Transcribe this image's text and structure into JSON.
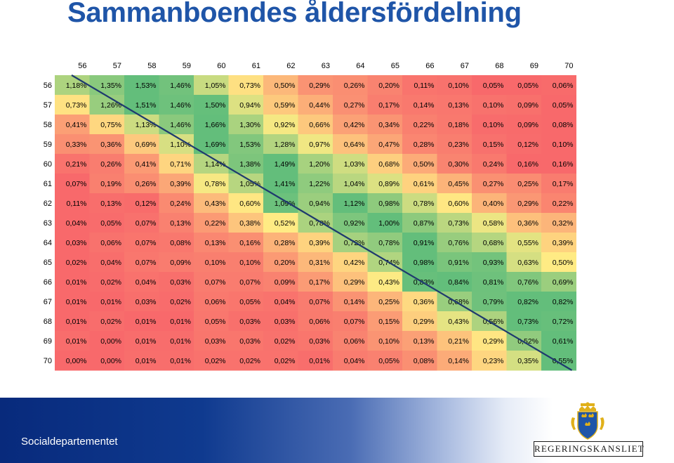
{
  "title": "Sammanboendes åldersfördelning",
  "footer": {
    "department": "Socialdepartementet",
    "logo_text": "REGERINGSKANSLIET"
  },
  "logo": {
    "icon": "three-crowns-crest-icon",
    "colors": {
      "shield": "#1f55a8",
      "crowns": "#e0b01a"
    }
  },
  "colors": {
    "title": "#1f55a8",
    "scale_low": "#f8696b",
    "scale_mid": "#ffeb84",
    "scale_high": "#63be7b",
    "diagonal_line": "#1f3a6e"
  },
  "chart_data": {
    "type": "heatmap",
    "title": "Sammanboendes åldersfördelning",
    "x_labels": [
      "56",
      "57",
      "58",
      "59",
      "60",
      "61",
      "62",
      "63",
      "64",
      "65",
      "66",
      "67",
      "68",
      "69",
      "70"
    ],
    "y_labels": [
      "56",
      "57",
      "58",
      "59",
      "60",
      "61",
      "62",
      "63",
      "64",
      "65",
      "66",
      "67",
      "68",
      "69",
      "70"
    ],
    "values": [
      [
        "1,18%",
        "1,35%",
        "1,53%",
        "1,46%",
        "1,05%",
        "0,73%",
        "0,50%",
        "0,29%",
        "0,26%",
        "0,20%",
        "0,11%",
        "0,10%",
        "0,05%",
        "0,05%",
        "0,06%"
      ],
      [
        "0,73%",
        "1,26%",
        "1,51%",
        "1,46%",
        "1,50%",
        "0,94%",
        "0,59%",
        "0,44%",
        "0,27%",
        "0,17%",
        "0,14%",
        "0,13%",
        "0,10%",
        "0,09%",
        "0,05%"
      ],
      [
        "0,41%",
        "0,75%",
        "1,13%",
        "1,46%",
        "1,66%",
        "1,30%",
        "0,92%",
        "0,66%",
        "0,42%",
        "0,34%",
        "0,22%",
        "0,18%",
        "0,10%",
        "0,09%",
        "0,08%"
      ],
      [
        "0,33%",
        "0,36%",
        "0,69%",
        "1,10%",
        "1,69%",
        "1,53%",
        "1,28%",
        "0,97%",
        "0,64%",
        "0,47%",
        "0,28%",
        "0,23%",
        "0,15%",
        "0,12%",
        "0,10%"
      ],
      [
        "0,21%",
        "0,26%",
        "0,41%",
        "0,71%",
        "1,14%",
        "1,38%",
        "1,49%",
        "1,20%",
        "1,03%",
        "0,68%",
        "0,50%",
        "0,30%",
        "0,24%",
        "0,16%",
        "0,16%"
      ],
      [
        "0,07%",
        "0,19%",
        "0,26%",
        "0,39%",
        "0,78%",
        "1,05%",
        "1,41%",
        "1,22%",
        "1,04%",
        "0,89%",
        "0,61%",
        "0,45%",
        "0,27%",
        "0,25%",
        "0,17%"
      ],
      [
        "0,11%",
        "0,13%",
        "0,12%",
        "0,24%",
        "0,43%",
        "0,60%",
        "1,09%",
        "0,94%",
        "1,12%",
        "0,98%",
        "0,78%",
        "0,60%",
        "0,40%",
        "0,29%",
        "0,22%"
      ],
      [
        "0,04%",
        "0,05%",
        "0,07%",
        "0,13%",
        "0,22%",
        "0,38%",
        "0,52%",
        "0,78%",
        "0,92%",
        "1,00%",
        "0,87%",
        "0,73%",
        "0,58%",
        "0,36%",
        "0,32%"
      ],
      [
        "0,03%",
        "0,06%",
        "0,07%",
        "0,08%",
        "0,13%",
        "0,16%",
        "0,28%",
        "0,39%",
        "0,72%",
        "0,78%",
        "0,91%",
        "0,76%",
        "0,68%",
        "0,55%",
        "0,39%"
      ],
      [
        "0,02%",
        "0,04%",
        "0,07%",
        "0,09%",
        "0,10%",
        "0,10%",
        "0,20%",
        "0,31%",
        "0,42%",
        "0,74%",
        "0,98%",
        "0,91%",
        "0,93%",
        "0,63%",
        "0,50%"
      ],
      [
        "0,01%",
        "0,02%",
        "0,04%",
        "0,03%",
        "0,07%",
        "0,07%",
        "0,09%",
        "0,17%",
        "0,29%",
        "0,43%",
        "0,83%",
        "0,84%",
        "0,81%",
        "0,76%",
        "0,69%"
      ],
      [
        "0,01%",
        "0,01%",
        "0,03%",
        "0,02%",
        "0,06%",
        "0,05%",
        "0,04%",
        "0,07%",
        "0,14%",
        "0,25%",
        "0,36%",
        "0,68%",
        "0,79%",
        "0,82%",
        "0,82%"
      ],
      [
        "0,01%",
        "0,02%",
        "0,01%",
        "0,01%",
        "0,05%",
        "0,03%",
        "0,03%",
        "0,06%",
        "0,07%",
        "0,15%",
        "0,29%",
        "0,43%",
        "0,56%",
        "0,73%",
        "0,72%"
      ],
      [
        "0,01%",
        "0,00%",
        "0,01%",
        "0,01%",
        "0,03%",
        "0,03%",
        "0,02%",
        "0,03%",
        "0,06%",
        "0,10%",
        "0,13%",
        "0,21%",
        "0,29%",
        "0,52%",
        "0,61%"
      ],
      [
        "0,00%",
        "0,00%",
        "0,01%",
        "0,01%",
        "0,02%",
        "0,02%",
        "0,02%",
        "0,01%",
        "0,04%",
        "0,05%",
        "0,08%",
        "0,14%",
        "0,23%",
        "0,35%",
        "0,55%"
      ]
    ],
    "color_scale": "red-yellow-green (low to high, per row)",
    "annotation": "diagonal line from top-left to bottom-right cell"
  }
}
